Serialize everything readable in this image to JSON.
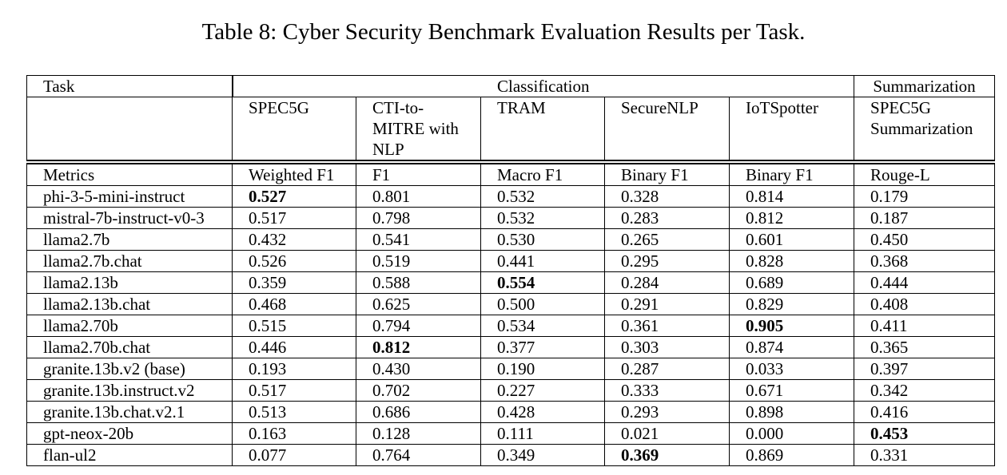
{
  "caption": "Table 8: Cyber Security Benchmark Evaluation Results per Task.",
  "header": {
    "task_label": "Task",
    "group_classification": "Classification",
    "group_summarization": "Summarization",
    "tasks": [
      "SPEC5G",
      "CTI-to-MITRE with NLP",
      "TRAM",
      "SecureNLP",
      "IoTSpotter",
      "SPEC5G Summarization"
    ],
    "metrics_label": "Metrics",
    "metrics": [
      "Weighted F1",
      "F1",
      "Macro F1",
      "Binary F1",
      "Binary F1",
      "Rouge-L"
    ]
  },
  "rows": [
    {
      "model": "phi-3-5-mini-instruct",
      "values": [
        "0.527",
        "0.801",
        "0.532",
        "0.328",
        "0.814",
        "0.179"
      ],
      "bold": [
        0
      ]
    },
    {
      "model": "mistral-7b-instruct-v0-3",
      "values": [
        "0.517",
        "0.798",
        "0.532",
        "0.283",
        "0.812",
        "0.187"
      ],
      "bold": []
    },
    {
      "model": "llama2.7b",
      "values": [
        "0.432",
        "0.541",
        "0.530",
        "0.265",
        "0.601",
        "0.450"
      ],
      "bold": []
    },
    {
      "model": "llama2.7b.chat",
      "values": [
        "0.526",
        "0.519",
        "0.441",
        "0.295",
        "0.828",
        "0.368"
      ],
      "bold": []
    },
    {
      "model": "llama2.13b",
      "values": [
        "0.359",
        "0.588",
        "0.554",
        "0.284",
        "0.689",
        "0.444"
      ],
      "bold": [
        2
      ]
    },
    {
      "model": "llama2.13b.chat",
      "values": [
        "0.468",
        "0.625",
        "0.500",
        "0.291",
        "0.829",
        "0.408"
      ],
      "bold": []
    },
    {
      "model": "llama2.70b",
      "values": [
        "0.515",
        "0.794",
        "0.534",
        "0.361",
        "0.905",
        "0.411"
      ],
      "bold": [
        4
      ]
    },
    {
      "model": "llama2.70b.chat",
      "values": [
        "0.446",
        "0.812",
        "0.377",
        "0.303",
        "0.874",
        "0.365"
      ],
      "bold": [
        1
      ]
    },
    {
      "model": "granite.13b.v2 (base)",
      "values": [
        "0.193",
        "0.430",
        "0.190",
        "0.287",
        "0.033",
        "0.397"
      ],
      "bold": []
    },
    {
      "model": "granite.13b.instruct.v2",
      "values": [
        "0.517",
        "0.702",
        "0.227",
        "0.333",
        "0.671",
        "0.342"
      ],
      "bold": []
    },
    {
      "model": "granite.13b.chat.v2.1",
      "values": [
        "0.513",
        "0.686",
        "0.428",
        "0.293",
        "0.898",
        "0.416"
      ],
      "bold": []
    },
    {
      "model": "gpt-neox-20b",
      "values": [
        "0.163",
        "0.128",
        "0.111",
        "0.021",
        "0.000",
        "0.453"
      ],
      "bold": [
        5
      ]
    },
    {
      "model": "flan-ul2",
      "values": [
        "0.077",
        "0.764",
        "0.349",
        "0.369",
        "0.869",
        "0.331"
      ],
      "bold": [
        3
      ]
    }
  ]
}
